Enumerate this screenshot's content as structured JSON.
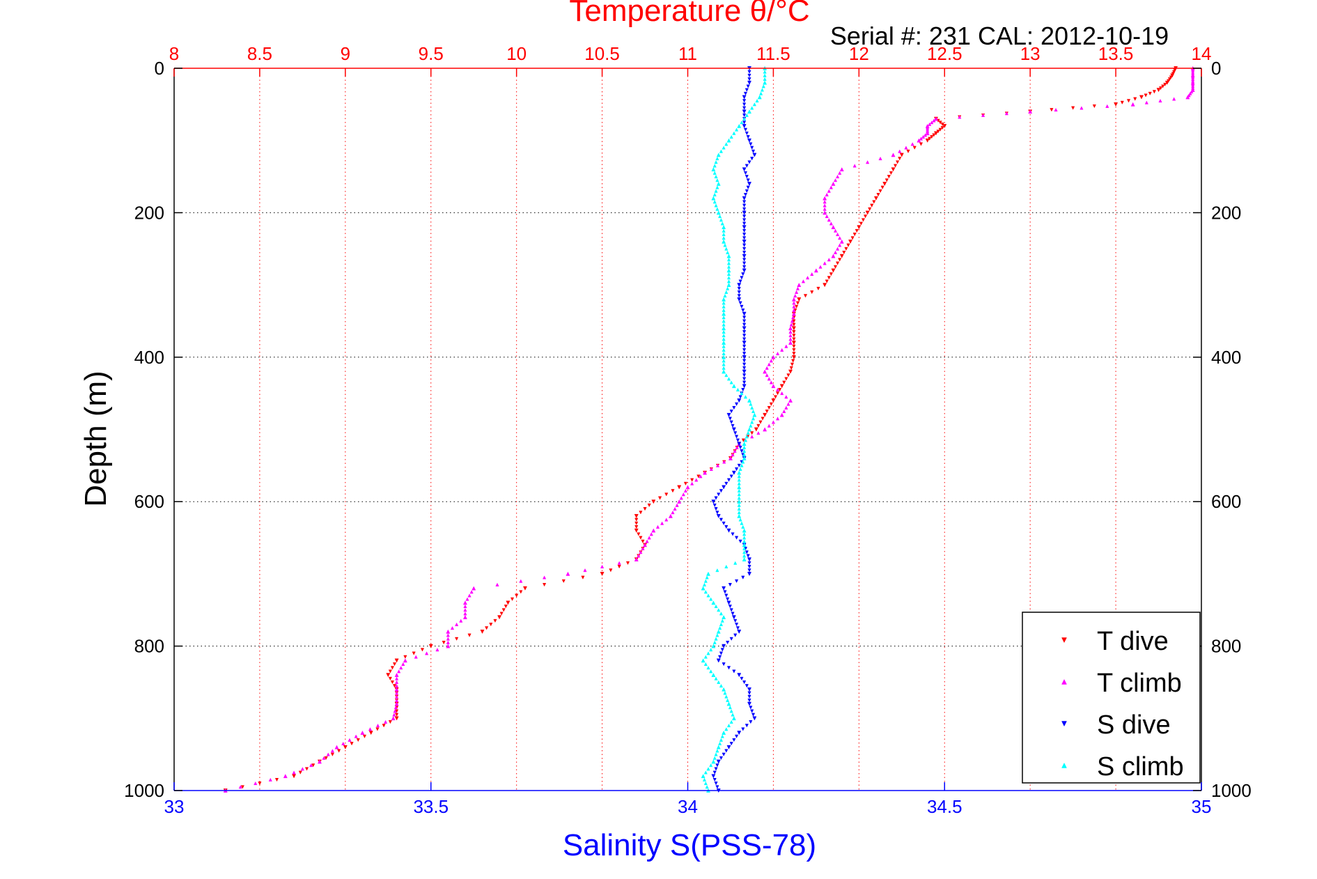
{
  "chart_data": {
    "type": "scatter",
    "title": "Temperature θ/°C",
    "subtitle": "Serial #: 231  CAL: 2012-10-19",
    "xlabel_top": "Temperature θ/°C",
    "xlabel_bottom": "Salinity S(PSS-78)",
    "ylabel": "Depth (m)",
    "temperature_axis": {
      "range": [
        8,
        14
      ],
      "ticks": [
        "8",
        "8.5",
        "9",
        "9.5",
        "10",
        "10.5",
        "11",
        "11.5",
        "12",
        "12.5",
        "13",
        "13.5",
        "14"
      ],
      "color": "#ff0000"
    },
    "salinity_axis": {
      "range": [
        33,
        35
      ],
      "ticks": [
        "33",
        "33.5",
        "34",
        "34.5",
        "35"
      ],
      "color": "#0000ff"
    },
    "depth_axis": {
      "range": [
        0,
        1000
      ],
      "reversed": true,
      "ticks": [
        "0",
        "200",
        "400",
        "600",
        "800",
        "1000"
      ]
    },
    "grid": true,
    "legend_position": "bottom-right",
    "series": [
      {
        "name": "T dive",
        "axis": "temperature",
        "color": "#ff0000",
        "marker": "triangle-down",
        "depth": [
          0,
          10,
          20,
          30,
          40,
          50,
          60,
          70,
          80,
          90,
          100,
          120,
          140,
          160,
          180,
          200,
          220,
          240,
          260,
          280,
          300,
          320,
          340,
          360,
          380,
          400,
          420,
          440,
          460,
          480,
          500,
          520,
          540,
          560,
          580,
          600,
          620,
          640,
          660,
          680,
          700,
          720,
          740,
          760,
          780,
          800,
          820,
          840,
          860,
          880,
          900,
          920,
          940,
          960,
          980,
          1000
        ],
        "values": [
          13.85,
          13.83,
          13.8,
          13.75,
          13.65,
          13.5,
          13.0,
          12.45,
          12.5,
          12.45,
          12.4,
          12.25,
          12.2,
          12.15,
          12.1,
          12.05,
          12.0,
          11.95,
          11.9,
          11.85,
          11.8,
          11.65,
          11.62,
          11.62,
          11.62,
          11.62,
          11.6,
          11.55,
          11.5,
          11.45,
          11.4,
          11.3,
          11.25,
          11.1,
          10.95,
          10.8,
          10.7,
          10.7,
          10.75,
          10.7,
          10.5,
          10.05,
          9.95,
          9.9,
          9.8,
          9.5,
          9.3,
          9.25,
          9.3,
          9.3,
          9.3,
          9.15,
          9.0,
          8.85,
          8.7,
          8.3
        ]
      },
      {
        "name": "T climb",
        "axis": "temperature",
        "color": "#ff00ff",
        "marker": "triangle-up",
        "depth": [
          0,
          10,
          20,
          30,
          40,
          50,
          60,
          70,
          80,
          90,
          100,
          120,
          140,
          160,
          180,
          200,
          220,
          240,
          260,
          280,
          300,
          320,
          340,
          360,
          380,
          400,
          420,
          440,
          460,
          480,
          500,
          520,
          540,
          560,
          580,
          600,
          620,
          640,
          660,
          680,
          700,
          720,
          740,
          760,
          780,
          800,
          820,
          840,
          860,
          880,
          900,
          920,
          940,
          960,
          980,
          1000
        ],
        "values": [
          13.95,
          13.95,
          13.95,
          13.95,
          13.92,
          13.6,
          13.0,
          12.45,
          12.4,
          12.4,
          12.35,
          12.2,
          11.9,
          11.85,
          11.8,
          11.8,
          11.85,
          11.9,
          11.85,
          11.75,
          11.65,
          11.62,
          11.62,
          11.6,
          11.6,
          11.5,
          11.45,
          11.5,
          11.6,
          11.55,
          11.45,
          11.3,
          11.25,
          11.1,
          11.0,
          10.95,
          10.9,
          10.8,
          10.75,
          10.7,
          10.3,
          9.75,
          9.7,
          9.7,
          9.6,
          9.6,
          9.35,
          9.3,
          9.3,
          9.3,
          9.28,
          9.1,
          8.95,
          8.85,
          8.65,
          8.3
        ]
      },
      {
        "name": "S dive",
        "axis": "salinity",
        "color": "#0000ff",
        "marker": "triangle-down",
        "depth": [
          0,
          20,
          40,
          60,
          80,
          100,
          120,
          140,
          160,
          180,
          200,
          220,
          240,
          260,
          280,
          300,
          320,
          340,
          360,
          380,
          400,
          420,
          440,
          460,
          480,
          500,
          520,
          540,
          560,
          580,
          600,
          620,
          640,
          660,
          680,
          700,
          720,
          740,
          760,
          780,
          800,
          820,
          840,
          860,
          880,
          900,
          920,
          940,
          960,
          980,
          1000
        ],
        "values": [
          34.12,
          34.12,
          34.11,
          34.11,
          34.11,
          34.12,
          34.13,
          34.11,
          34.12,
          34.11,
          34.11,
          34.11,
          34.11,
          34.11,
          34.11,
          34.1,
          34.1,
          34.11,
          34.11,
          34.11,
          34.11,
          34.11,
          34.11,
          34.1,
          34.08,
          34.09,
          34.1,
          34.11,
          34.09,
          34.07,
          34.05,
          34.06,
          34.08,
          34.11,
          34.12,
          34.12,
          34.07,
          34.08,
          34.09,
          34.1,
          34.07,
          34.06,
          34.1,
          34.12,
          34.12,
          34.13,
          34.1,
          34.08,
          34.06,
          34.05,
          34.06
        ]
      },
      {
        "name": "S climb",
        "axis": "salinity",
        "color": "#00ffff",
        "marker": "triangle-up",
        "depth": [
          0,
          20,
          40,
          60,
          80,
          100,
          120,
          140,
          160,
          180,
          200,
          220,
          240,
          260,
          280,
          300,
          320,
          340,
          360,
          380,
          400,
          420,
          440,
          460,
          480,
          500,
          520,
          540,
          560,
          580,
          600,
          620,
          640,
          660,
          680,
          700,
          720,
          740,
          760,
          780,
          800,
          820,
          840,
          860,
          880,
          900,
          920,
          940,
          960,
          980,
          1000
        ],
        "values": [
          34.15,
          34.15,
          34.14,
          34.12,
          34.1,
          34.08,
          34.06,
          34.05,
          34.06,
          34.05,
          34.06,
          34.07,
          34.07,
          34.08,
          34.08,
          34.08,
          34.07,
          34.07,
          34.07,
          34.07,
          34.07,
          34.07,
          34.09,
          34.12,
          34.13,
          34.12,
          34.11,
          34.11,
          34.1,
          34.1,
          34.1,
          34.1,
          34.11,
          34.11,
          34.11,
          34.04,
          34.03,
          34.05,
          34.07,
          34.06,
          34.05,
          34.03,
          34.05,
          34.07,
          34.08,
          34.09,
          34.07,
          34.06,
          34.05,
          34.03,
          34.04
        ]
      }
    ]
  }
}
